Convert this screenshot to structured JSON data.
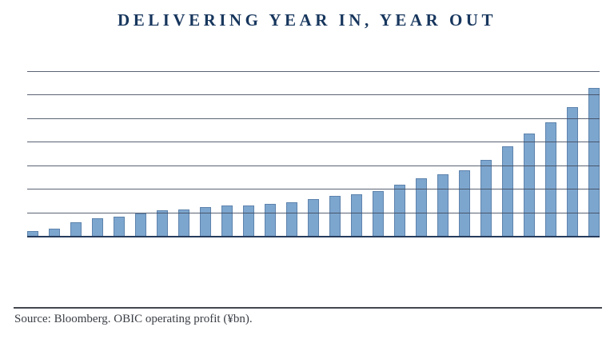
{
  "title": "DELIVERING YEAR IN, YEAR OUT",
  "footer": {
    "source_note": "Source: Bloomberg. OBIC operating profit (¥bn)."
  },
  "colors": {
    "title": "#17365d",
    "bar_fill": "#7da6ce",
    "bar_border": "#5d83ad",
    "gridline": "#3e485a",
    "axis": "#263c5c",
    "divider": "#43474d",
    "source_text": "#3a3e45",
    "background": "#ffffff"
  },
  "chart_data": {
    "type": "bar",
    "title": "DELIVERING YEAR IN, YEAR OUT",
    "subtitle": "",
    "values": [
      2.4,
      3.4,
      6.1,
      7.8,
      8.5,
      10.0,
      11.3,
      11.6,
      12.7,
      13.2,
      13.4,
      14.1,
      14.7,
      15.9,
      17.5,
      18.1,
      19.5,
      22.2,
      24.8,
      26.6,
      28.2,
      32.6,
      38.3,
      43.8,
      48.7,
      54.9,
      63.3
    ],
    "bar_count": 27,
    "xlabel": "",
    "ylabel": "",
    "x_tick_labels_visible": false,
    "y_tick_labels_visible": false,
    "ylim": [
      0,
      70
    ],
    "ytick_step": 10,
    "grid": true,
    "gridlines_over_bars": true,
    "legend": "none",
    "annotation": "Source: Bloomberg. OBIC operating profit (¥bn)."
  }
}
